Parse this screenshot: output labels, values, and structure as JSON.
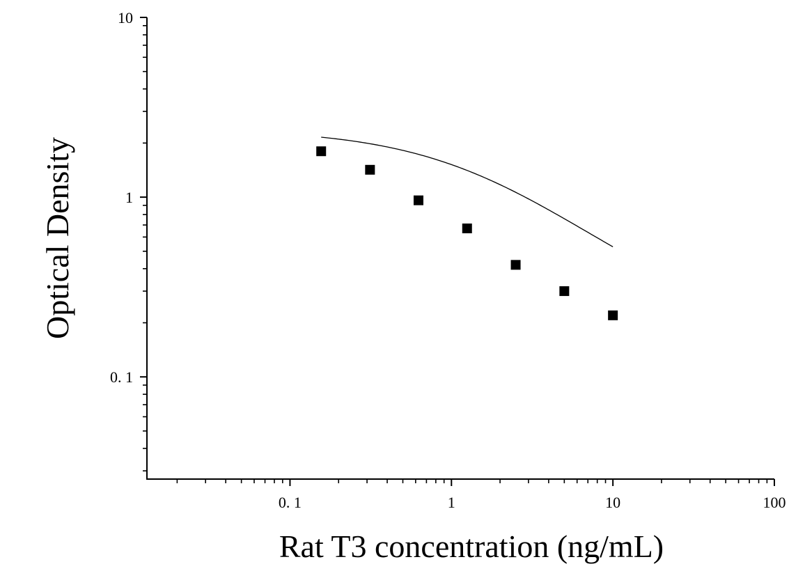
{
  "chart_data": {
    "type": "scatter",
    "title": "",
    "xlabel": "Rat T3 concentration (ng/mL)",
    "ylabel": "Optical Density",
    "x_scale": "log",
    "y_scale": "log",
    "xlim": [
      0.013,
      100
    ],
    "ylim": [
      0.027,
      10
    ],
    "x_ticks": [
      {
        "value": 0.1,
        "label": "0. 1"
      },
      {
        "value": 1,
        "label": "1"
      },
      {
        "value": 10,
        "label": "10"
      },
      {
        "value": 100,
        "label": "100"
      }
    ],
    "y_ticks": [
      {
        "value": 0.1,
        "label": "0. 1"
      },
      {
        "value": 1,
        "label": "1"
      },
      {
        "value": 10,
        "label": "10"
      }
    ],
    "grid": false,
    "legend": "none",
    "series": [
      {
        "points": [
          {
            "x": 0.156,
            "y": 1.8
          },
          {
            "x": 0.313,
            "y": 1.42
          },
          {
            "x": 0.625,
            "y": 0.96
          },
          {
            "x": 1.25,
            "y": 0.67
          },
          {
            "x": 2.5,
            "y": 0.42
          },
          {
            "x": 5,
            "y": 0.3
          },
          {
            "x": 10,
            "y": 0.22
          }
        ],
        "marker": "square",
        "color": "#000000",
        "fit": "four-parameter-logistic"
      }
    ]
  }
}
